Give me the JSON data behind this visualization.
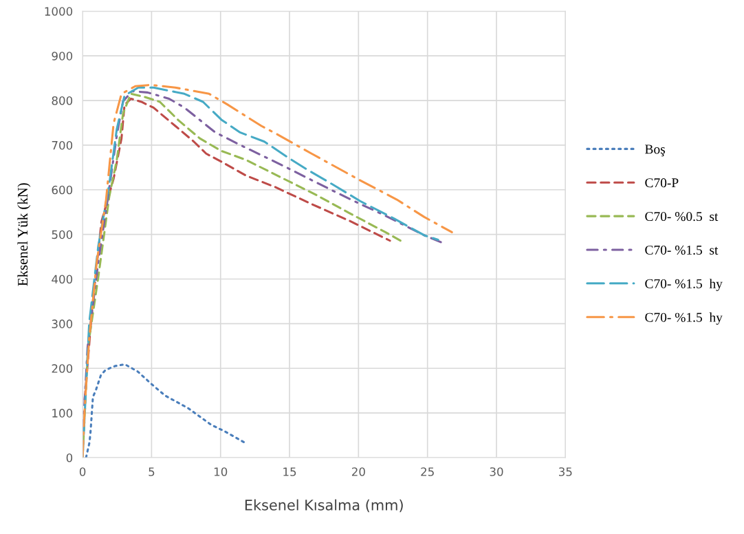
{
  "chart_data": {
    "type": "line",
    "xlabel": "Eksenel Kısalma (mm)",
    "ylabel": "Eksenel Yük (kN)",
    "xlim": [
      0,
      35
    ],
    "xticks": [
      0,
      5,
      10,
      15,
      20,
      25,
      30,
      35
    ],
    "ylim": [
      0,
      1000
    ],
    "yticks": [
      0,
      100,
      200,
      300,
      400,
      500,
      600,
      700,
      800,
      900,
      1000
    ],
    "grid": true,
    "legend": "right",
    "marker": "none",
    "series": [
      {
        "name": "Boş",
        "color": "#4a7ebb",
        "line_style": "dotted",
        "x": [
          0.25,
          0.5,
          0.58,
          0.75,
          0.96,
          1.33,
          1.65,
          2.33,
          3.07,
          3.99,
          4.99,
          5.98,
          7.64,
          9.3,
          10.3,
          11.9
        ],
        "values": [
          0,
          34,
          59,
          136,
          151,
          185,
          196,
          205,
          209,
          193,
          165,
          139,
          111,
          74,
          59,
          31
        ]
      },
      {
        "name": "C70-P",
        "color": "#be4b48",
        "line_style": "dashed",
        "x": [
          0.15,
          0.7,
          1.37,
          2.25,
          2.82,
          3.04,
          3.5,
          4.26,
          5.14,
          6.72,
          8.06,
          8.96,
          10.06,
          11.84,
          13.97,
          16.46,
          19.45,
          22.28
        ],
        "values": [
          130,
          336,
          529,
          625,
          715,
          790,
          804,
          797,
          784,
          743,
          708,
          681,
          663,
          632,
          606,
          570,
          529,
          486
        ]
      },
      {
        "name": "C70- %0.5  st",
        "color": "#98b954",
        "line_style": "dashed",
        "x": [
          0,
          0.4,
          1.14,
          1.93,
          2.48,
          2.93,
          3.49,
          4.49,
          5.6,
          6.94,
          8.5,
          10.06,
          11.84,
          14.3,
          16.96,
          19.45,
          21.95,
          23.1
        ],
        "values": [
          0,
          250,
          405,
          584,
          667,
          770,
          815,
          808,
          797,
          756,
          715,
          687,
          667,
          629,
          588,
          546,
          505,
          485
        ]
      },
      {
        "name": "C70- %1.5  st",
        "color": "#7d60a0",
        "line_style": "dashdot",
        "x": [
          0.03,
          0.36,
          1.14,
          1.81,
          2.48,
          2.93,
          3.59,
          4.71,
          6.27,
          7.38,
          9.6,
          11.38,
          14.46,
          16.96,
          19.45,
          21.95,
          24.77,
          26.27
        ],
        "values": [
          61,
          246,
          439,
          577,
          722,
          798,
          821,
          818,
          804,
          784,
          729,
          701,
          655,
          616,
          578,
          542,
          498,
          479
        ]
      },
      {
        "name": "C70- %1.5  hy",
        "color": "#46aac5",
        "line_style": "longdash",
        "x": [
          0,
          0.48,
          1.14,
          1.93,
          2.48,
          3.04,
          4.04,
          5.15,
          7.38,
          8.73,
          10.06,
          11.38,
          13.17,
          14.85,
          16.29,
          18.29,
          20.1,
          22.6,
          24.77,
          25.77
        ],
        "values": [
          0,
          302,
          474,
          612,
          736,
          811,
          829,
          829,
          815,
          797,
          757,
          729,
          708,
          673,
          645,
          609,
          575,
          535,
          498,
          488
        ]
      },
      {
        "name": "C70- %1.5  hy",
        "color": "#f79646",
        "line_style": "longdashdot",
        "x": [
          0,
          0.15,
          0.48,
          1.03,
          1.7,
          2.25,
          2.82,
          3.82,
          4.94,
          6.72,
          9.17,
          10.5,
          12.96,
          14.3,
          16.6,
          19.95,
          22.78,
          24.77,
          26.77
        ],
        "values": [
          0,
          109,
          267,
          439,
          577,
          749,
          815,
          832,
          835,
          829,
          815,
          791,
          743,
          721,
          681,
          624,
          578,
          539,
          505
        ]
      }
    ]
  }
}
